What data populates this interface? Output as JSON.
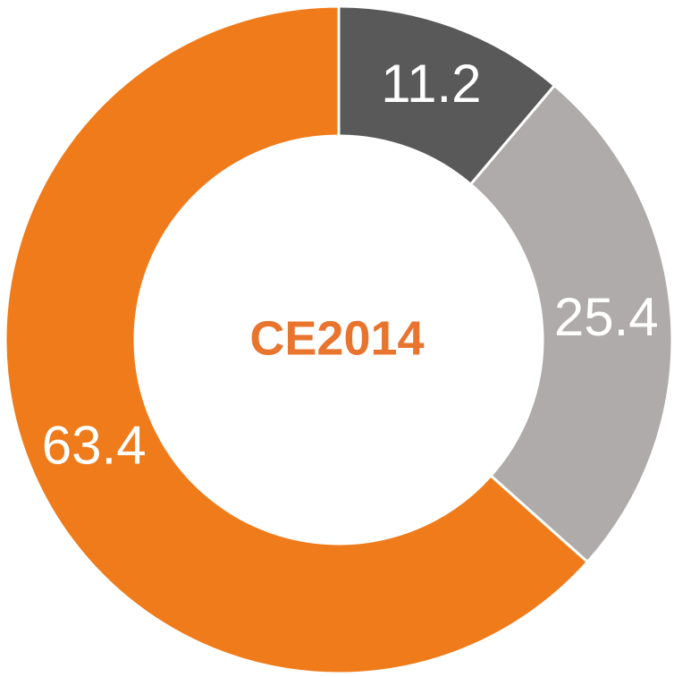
{
  "chart_data": {
    "type": "donut",
    "title": "CE2014",
    "values": [
      11.2,
      25.4,
      63.4
    ],
    "colors": [
      "#595959",
      "#aeabaa",
      "#ef7b1b"
    ]
  }
}
